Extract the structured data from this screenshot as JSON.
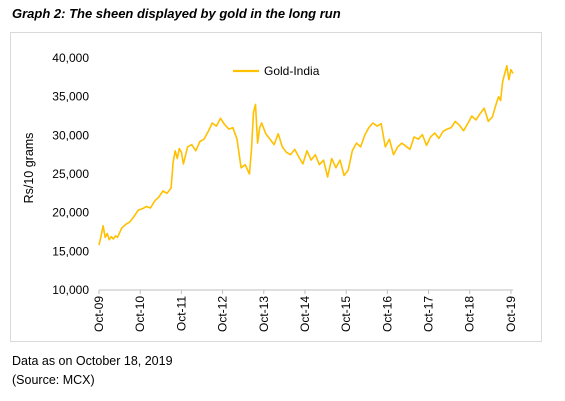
{
  "title": "Graph 2: The sheen displayed by gold in the long run",
  "notes": {
    "date": "Data as on October 18, 2019",
    "source": "(Source: MCX)"
  },
  "colors": {
    "series": "#FFC000",
    "axis": "#bfbfbf",
    "frame": "#d9d9d9"
  },
  "chart_data": {
    "type": "line",
    "ylabel": "Rs/10 grams",
    "xlabel": "",
    "ylim": [
      10000,
      40000
    ],
    "yticks": [
      "10,000",
      "15,000",
      "20,000",
      "25,000",
      "30,000",
      "35,000",
      "40,000"
    ],
    "ytick_values": [
      10000,
      15000,
      20000,
      25000,
      30000,
      35000,
      40000
    ],
    "xticks": [
      "Oct-09",
      "Oct-10",
      "Oct-11",
      "Oct-12",
      "Oct-13",
      "Oct-14",
      "Oct-15",
      "Oct-16",
      "Oct-17",
      "Oct-18",
      "Oct-19"
    ],
    "xlim": [
      2009.75,
      2019.8
    ],
    "grid": false,
    "legend_position": "top-left",
    "series": [
      {
        "name": "Gold-India",
        "x": [
          2009.75,
          2009.8,
          2009.85,
          2009.9,
          2009.95,
          2010.0,
          2010.05,
          2010.1,
          2010.15,
          2010.2,
          2010.3,
          2010.4,
          2010.5,
          2010.6,
          2010.7,
          2010.8,
          2010.9,
          2011.0,
          2011.1,
          2011.2,
          2011.3,
          2011.4,
          2011.5,
          2011.55,
          2011.6,
          2011.65,
          2011.7,
          2011.75,
          2011.8,
          2011.9,
          2012.0,
          2012.1,
          2012.2,
          2012.3,
          2012.4,
          2012.5,
          2012.6,
          2012.7,
          2012.8,
          2012.9,
          2013.0,
          2013.1,
          2013.2,
          2013.3,
          2013.4,
          2013.45,
          2013.5,
          2013.55,
          2013.6,
          2013.65,
          2013.7,
          2013.8,
          2013.9,
          2014.0,
          2014.1,
          2014.2,
          2014.3,
          2014.4,
          2014.5,
          2014.6,
          2014.7,
          2014.8,
          2014.9,
          2015.0,
          2015.1,
          2015.2,
          2015.3,
          2015.4,
          2015.5,
          2015.6,
          2015.7,
          2015.8,
          2015.9,
          2016.0,
          2016.1,
          2016.2,
          2016.3,
          2016.4,
          2016.5,
          2016.6,
          2016.7,
          2016.8,
          2016.9,
          2017.0,
          2017.1,
          2017.2,
          2017.3,
          2017.4,
          2017.5,
          2017.6,
          2017.7,
          2017.8,
          2017.9,
          2018.0,
          2018.1,
          2018.2,
          2018.3,
          2018.4,
          2018.5,
          2018.6,
          2018.7,
          2018.8,
          2018.9,
          2019.0,
          2019.1,
          2019.2,
          2019.3,
          2019.4,
          2019.45,
          2019.5,
          2019.55,
          2019.6,
          2019.65,
          2019.7,
          2019.75,
          2019.8
        ],
        "y": [
          15800,
          17000,
          18300,
          16800,
          17300,
          16500,
          16900,
          16600,
          17000,
          16800,
          18000,
          18500,
          18800,
          19500,
          20300,
          20500,
          20800,
          20600,
          21500,
          22000,
          22800,
          22500,
          23200,
          26500,
          28000,
          27000,
          28300,
          27800,
          26300,
          28500,
          28800,
          28000,
          29200,
          29500,
          30500,
          31600,
          31200,
          32200,
          31400,
          30800,
          31000,
          29500,
          25800,
          26200,
          25000,
          28000,
          33000,
          34000,
          29000,
          31000,
          31600,
          30200,
          29500,
          28800,
          30200,
          28500,
          27800,
          27500,
          28200,
          27200,
          26300,
          28000,
          26800,
          27500,
          26200,
          26800,
          24600,
          27000,
          25800,
          26800,
          24800,
          25500,
          28000,
          29000,
          28500,
          30000,
          31000,
          31600,
          31200,
          31500,
          28500,
          29500,
          27500,
          28500,
          29000,
          28600,
          28200,
          29800,
          29500,
          30100,
          28700,
          29800,
          30300,
          29600,
          30500,
          30800,
          31000,
          31800,
          31300,
          30600,
          31500,
          32500,
          32000,
          32800,
          33500,
          31800,
          32400,
          34200,
          35000,
          34500,
          37000,
          38000,
          39000,
          37200,
          38500,
          38000
        ]
      }
    ]
  }
}
